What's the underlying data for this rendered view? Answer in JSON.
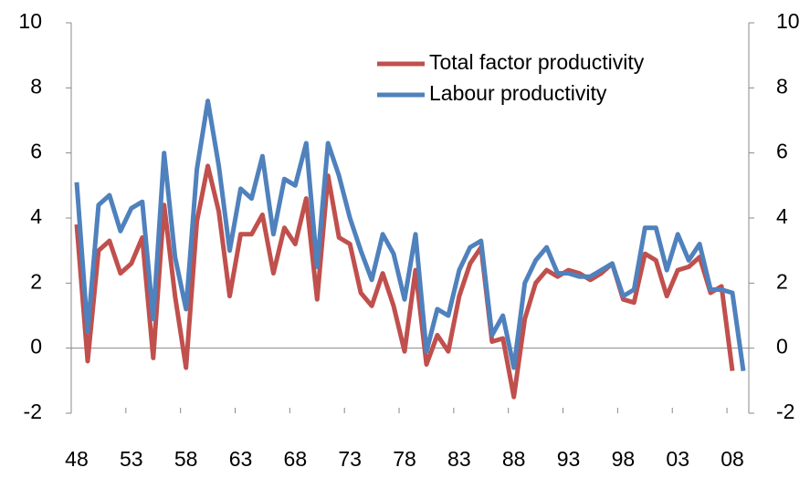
{
  "chart_data": {
    "type": "line",
    "categories": [
      "48",
      null,
      null,
      null,
      null,
      "53",
      null,
      null,
      null,
      null,
      "58",
      null,
      null,
      null,
      null,
      "63",
      null,
      null,
      null,
      null,
      "68",
      null,
      null,
      null,
      null,
      "73",
      null,
      null,
      null,
      null,
      "78",
      null,
      null,
      null,
      null,
      "83",
      null,
      null,
      null,
      null,
      "88",
      null,
      null,
      null,
      null,
      "93",
      null,
      null,
      null,
      null,
      "98",
      null,
      null,
      null,
      null,
      "03",
      null,
      null,
      null,
      null,
      "08",
      null
    ],
    "series": [
      {
        "name": "Total factor productivity",
        "color": "#c0504d",
        "values": [
          3.8,
          -0.4,
          3.0,
          3.3,
          2.3,
          2.6,
          3.4,
          -0.3,
          4.4,
          1.6,
          -0.6,
          3.9,
          5.6,
          4.2,
          1.6,
          3.5,
          3.5,
          4.1,
          2.3,
          3.7,
          3.2,
          4.6,
          1.5,
          5.3,
          3.4,
          3.2,
          1.7,
          1.3,
          2.3,
          1.3,
          -0.1,
          2.4,
          -0.5,
          0.4,
          -0.1,
          1.6,
          2.6,
          3.1,
          0.2,
          0.3,
          -1.5,
          0.9,
          2.0,
          2.4,
          2.2,
          2.4,
          2.3,
          2.1,
          2.3,
          2.6,
          1.5,
          1.4,
          2.9,
          2.7,
          1.6,
          2.4,
          2.5,
          2.8,
          1.7,
          1.9,
          -0.7,
          null
        ]
      },
      {
        "name": "Labour productivity",
        "color": "#4f81bd",
        "values": [
          5.1,
          0.5,
          4.4,
          4.7,
          3.6,
          4.3,
          4.5,
          0.9,
          6.0,
          2.8,
          1.2,
          5.5,
          7.6,
          5.6,
          3.0,
          4.9,
          4.6,
          5.9,
          3.5,
          5.2,
          5.0,
          6.3,
          2.5,
          6.3,
          5.3,
          4.0,
          3.0,
          2.1,
          3.5,
          2.9,
          1.5,
          3.5,
          -0.1,
          1.2,
          1.0,
          2.4,
          3.1,
          3.3,
          0.4,
          1.0,
          -0.6,
          2.0,
          2.7,
          3.1,
          2.3,
          2.3,
          2.2,
          2.2,
          2.4,
          2.6,
          1.6,
          1.8,
          3.7,
          3.7,
          2.4,
          3.5,
          2.7,
          3.2,
          1.8,
          1.8,
          1.7,
          -0.7
        ]
      }
    ],
    "ylim": [
      -2,
      10
    ],
    "yticks": [
      -2,
      0,
      2,
      4,
      6,
      8,
      10
    ],
    "y2lim": [
      -2,
      10
    ],
    "y2ticks": [
      -2,
      0,
      2,
      4,
      6,
      8,
      10
    ],
    "legend": "top-right"
  }
}
